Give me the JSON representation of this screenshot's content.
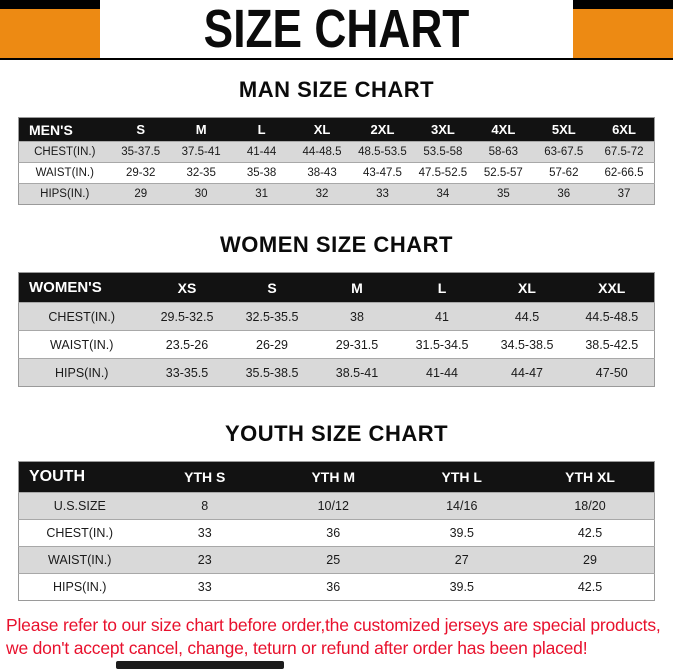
{
  "page": {
    "title": "SIZE CHART"
  },
  "colors": {
    "accent_orange": "#ED8A13",
    "table_header_bg": "#121212",
    "row_alt_bg": "#D9D9D9",
    "notice_red": "#E8112D"
  },
  "sections": [
    {
      "heading": "MAN SIZE CHART",
      "table": {
        "header": [
          "MEN'S",
          "S",
          "M",
          "L",
          "XL",
          "2XL",
          "3XL",
          "4XL",
          "5XL",
          "6XL"
        ],
        "rows": [
          [
            "CHEST(IN.)",
            "35-37.5",
            "37.5-41",
            "41-44",
            "44-48.5",
            "48.5-53.5",
            "53.5-58",
            "58-63",
            "63-67.5",
            "67.5-72"
          ],
          [
            "WAIST(IN.)",
            "29-32",
            "32-35",
            "35-38",
            "38-43",
            "43-47.5",
            "47.5-52.5",
            "52.5-57",
            "57-62",
            "62-66.5"
          ],
          [
            "HIPS(IN.)",
            "29",
            "30",
            "31",
            "32",
            "33",
            "34",
            "35",
            "36",
            "37"
          ]
        ]
      }
    },
    {
      "heading": "WOMEN SIZE CHART",
      "table": {
        "header": [
          "WOMEN'S",
          "XS",
          "S",
          "M",
          "L",
          "XL",
          "XXL"
        ],
        "rows": [
          [
            "CHEST(IN.)",
            "29.5-32.5",
            "32.5-35.5",
            "38",
            "41",
            "44.5",
            "44.5-48.5"
          ],
          [
            "WAIST(IN.)",
            "23.5-26",
            "26-29",
            "29-31.5",
            "31.5-34.5",
            "34.5-38.5",
            "38.5-42.5"
          ],
          [
            "HIPS(IN.)",
            "33-35.5",
            "35.5-38.5",
            "38.5-41",
            "41-44",
            "44-47",
            "47-50"
          ]
        ]
      }
    },
    {
      "heading": "YOUTH SIZE CHART",
      "table": {
        "header": [
          "YOUTH",
          "YTH S",
          "YTH M",
          "YTH L",
          "YTH XL"
        ],
        "rows": [
          [
            "U.S.SIZE",
            "8",
            "10/12",
            "14/16",
            "18/20"
          ],
          [
            "CHEST(IN.)",
            "33",
            "36",
            "39.5",
            "42.5"
          ],
          [
            "WAIST(IN.)",
            "23",
            "25",
            "27",
            "29"
          ],
          [
            "HIPS(IN.)",
            "33",
            "36",
            "39.5",
            "42.5"
          ]
        ]
      }
    }
  ],
  "notice": {
    "line1": "Please refer to our size chart before order,the customized jerseys are special products,",
    "line2": "we don't accept cancel, change, teturn or refund after order has been placed!"
  }
}
